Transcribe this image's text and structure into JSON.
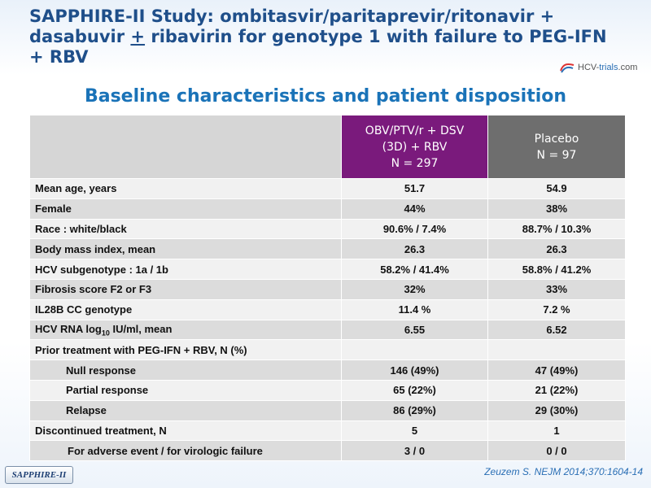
{
  "title": {
    "part1": "SAPPHIRE-II Study: ombitasvir/paritaprevir/ritonavir + dasabuvir ",
    "plus": "+",
    "part2": " ribavirin for genotype 1 with failure to PEG-IFN + RBV"
  },
  "logo": {
    "text_a": "HCV-",
    "text_b": "trials",
    "text_c": ".com"
  },
  "subtitle": "Baseline characteristics and patient disposition",
  "table": {
    "col_a": {
      "line1": "OBV/PTV/r + DSV",
      "line2": "(3D) + RBV",
      "line3": "N = 297"
    },
    "col_b": {
      "line1": "Placebo",
      "line2": "N = 97"
    },
    "rows": [
      {
        "label": "Mean age, years",
        "a": "51.7",
        "b": "54.9"
      },
      {
        "label": "Female",
        "a": "44%",
        "b": "38%"
      },
      {
        "label": "Race : white/black",
        "a": "90.6% / 7.4%",
        "b": "88.7% / 10.3%"
      },
      {
        "label": "Body mass index, mean",
        "a": "26.3",
        "b": "26.3"
      },
      {
        "label": "HCV subgenotype : 1a / 1b",
        "a": "58.2% / 41.4%",
        "b": "58.8% / 41.2%"
      },
      {
        "label": "Fibrosis score F2 or F3",
        "a": "32%",
        "b": "33%"
      },
      {
        "label": "IL28B CC genotype",
        "a": "11.4 %",
        "b": "7.2 %"
      },
      {
        "label_pre": "HCV RNA log",
        "label_sub": "10",
        "label_post": " IU/ml, mean",
        "a": "6.55",
        "b": "6.52"
      },
      {
        "label": "Prior treatment with PEG-IFN + RBV, N (%)",
        "a": "",
        "b": ""
      },
      {
        "label": "Null response",
        "a": "146 (49%)",
        "b": "47 (49%)"
      },
      {
        "label": "Partial response",
        "a": "65 (22%)",
        "b": "21 (22%)"
      },
      {
        "label": "Relapse",
        "a": "86 (29%)",
        "b": "29 (30%)"
      },
      {
        "label": "Discontinued treatment, N",
        "a": "5",
        "b": "1"
      },
      {
        "label": "For adverse event / for virologic failure",
        "a": "3 / 0",
        "b": "0 / 0"
      }
    ]
  },
  "badge": "SAPPHIRE-II",
  "citation": "Zeuzem S. NEJM 2014;370:1604-14",
  "colors": {
    "title": "#1f4f8a",
    "subtitle": "#1a73b8",
    "col_a": "#7a1a7c",
    "col_b": "#6e6e6e"
  }
}
